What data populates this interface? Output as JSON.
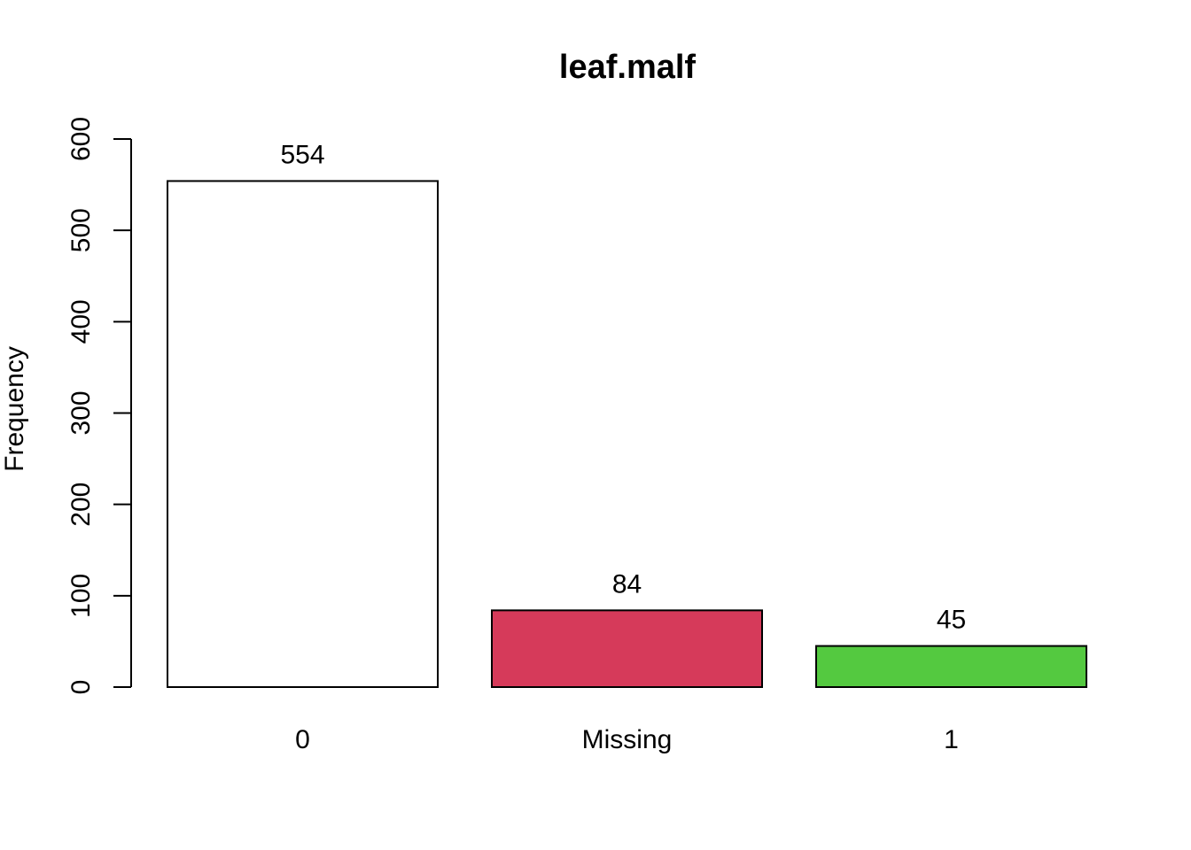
{
  "chart_data": {
    "type": "bar",
    "title": "leaf.malf",
    "xlabel": "",
    "ylabel": "Frequency",
    "categories": [
      "0",
      "Missing",
      "1"
    ],
    "values": [
      554,
      84,
      45
    ],
    "data_labels": [
      "554",
      "84",
      "45"
    ],
    "colors": [
      "#ffffff",
      "#d63a5a",
      "#54c940"
    ],
    "ylim": [
      0,
      600
    ],
    "yticks": [
      0,
      100,
      200,
      300,
      400,
      500,
      600
    ],
    "ytick_labels": [
      "0",
      "100",
      "200",
      "300",
      "400",
      "500",
      "600"
    ],
    "grid": false,
    "legend": "none"
  }
}
